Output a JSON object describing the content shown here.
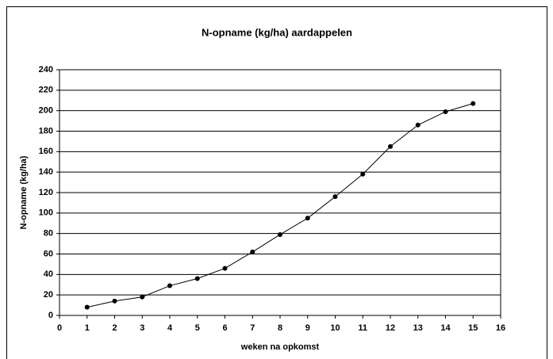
{
  "chart_data": {
    "type": "line",
    "title": "N-opname (kg/ha) aardappelen",
    "x_label": "weken na opkomst",
    "y_label": "N-opname (kg/ha)",
    "x": [
      1,
      2,
      3,
      4,
      5,
      6,
      7,
      8,
      9,
      10,
      11,
      12,
      13,
      14,
      15
    ],
    "series": [
      {
        "name": "N-opname",
        "color": "#000000",
        "values": [
          8,
          14,
          18,
          29,
          36,
          46,
          62,
          79,
          95,
          116,
          138,
          165,
          186,
          199,
          207
        ]
      }
    ],
    "xlim": [
      0,
      16
    ],
    "xticks": [
      0,
      1,
      2,
      3,
      4,
      5,
      6,
      7,
      8,
      9,
      10,
      11,
      12,
      13,
      14,
      15,
      16
    ],
    "ylim": [
      0,
      240
    ],
    "yticks": [
      0,
      20,
      40,
      60,
      80,
      100,
      120,
      140,
      160,
      180,
      200,
      220,
      240
    ],
    "grid": true
  }
}
